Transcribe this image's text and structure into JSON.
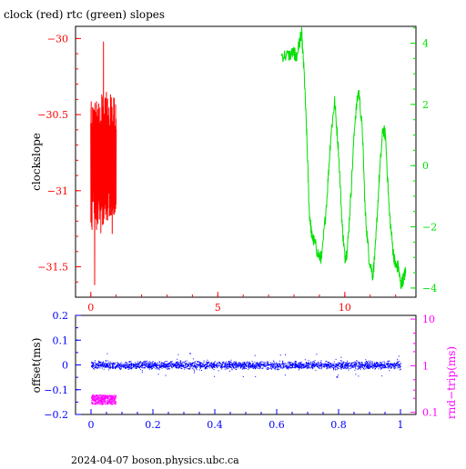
{
  "chart_title": "clock (red) rtc (green) slopes",
  "footer": "2024-04-07 boson.physics.ubc.ca",
  "colors": {
    "red": "#ff0000",
    "green": "#00e000",
    "blue": "#0000ff",
    "magenta": "#ff00ff",
    "frame": "#000000"
  },
  "chart_data": [
    {
      "type": "line",
      "title": "clock (red) rtc (green) slopes",
      "xlabel": "",
      "ylabel": "clockslope",
      "xlim": [
        -0.6,
        12.8
      ],
      "ylim": [
        -31.7,
        -29.92
      ],
      "right_ylim": [
        -4.3,
        4.55
      ],
      "x_ticks": [
        0,
        5,
        10
      ],
      "y_ticks": [
        -30,
        -30.5,
        -31,
        -31.5
      ],
      "right_y_ticks": [
        4,
        2,
        0,
        -2,
        -4
      ],
      "series": [
        {
          "color": "red",
          "axis": "left",
          "x_range": [
            0,
            1
          ],
          "band": {
            "center": -30.8,
            "halfwidth_min": 0.22,
            "halfwidth_max": 0.52,
            "lowest": -31.62,
            "highest": -30.02
          }
        },
        {
          "color": "green",
          "axis": "right",
          "points": [
            [
              7.5,
              3.6
            ],
            [
              7.8,
              3.6
            ],
            [
              8.0,
              3.7
            ],
            [
              8.1,
              3.5
            ],
            [
              8.2,
              4.0
            ],
            [
              8.3,
              4.3
            ],
            [
              8.4,
              3.0
            ],
            [
              8.5,
              1.0
            ],
            [
              8.6,
              -1.5
            ],
            [
              8.7,
              -2.3
            ],
            [
              8.8,
              -2.5
            ],
            [
              9.0,
              -3.0
            ],
            [
              9.1,
              -3.0
            ],
            [
              9.3,
              -1.0
            ],
            [
              9.45,
              1.0
            ],
            [
              9.6,
              2.1
            ],
            [
              9.75,
              0.5
            ],
            [
              9.9,
              -2.0
            ],
            [
              10.0,
              -3.0
            ],
            [
              10.1,
              -2.8
            ],
            [
              10.25,
              -0.8
            ],
            [
              10.4,
              1.5
            ],
            [
              10.55,
              2.5
            ],
            [
              10.7,
              1.0
            ],
            [
              10.8,
              -1.5
            ],
            [
              10.95,
              -3.0
            ],
            [
              11.1,
              -3.6
            ],
            [
              11.2,
              -2.8
            ],
            [
              11.35,
              -0.5
            ],
            [
              11.5,
              1.2
            ],
            [
              11.6,
              1.0
            ],
            [
              11.75,
              -1.5
            ],
            [
              11.9,
              -2.8
            ],
            [
              12.0,
              -3.3
            ],
            [
              12.1,
              -3.3
            ],
            [
              12.2,
              -3.9
            ],
            [
              12.35,
              -3.6
            ],
            [
              12.4,
              -3.4
            ]
          ]
        }
      ]
    },
    {
      "type": "scatter",
      "xlabel": "",
      "ylabel": "offset(ms)",
      "right_ylabel": "rnd−trip(ms)",
      "xlim": [
        -0.05,
        1.05
      ],
      "ylim": [
        -0.2,
        0.2
      ],
      "right_ylim": [
        0.09,
        12
      ],
      "right_scale": "log",
      "x_ticks": [
        0,
        0.2,
        0.4,
        0.6,
        0.8,
        1
      ],
      "y_ticks": [
        0.2,
        0.1,
        0,
        -0.1,
        -0.2
      ],
      "right_y_ticks": [
        10,
        1,
        0.1
      ],
      "series": [
        {
          "color": "blue",
          "axis": "left",
          "x_range": [
            0,
            1
          ],
          "band": {
            "center": 0.0,
            "halfwidth": 0.022,
            "outlier_spread": 0.05
          }
        },
        {
          "color": "magenta",
          "axis": "right",
          "x_range": [
            0,
            0.08
          ],
          "band": {
            "center": 0.19,
            "low": 0.15,
            "high": 0.24
          }
        }
      ]
    }
  ]
}
